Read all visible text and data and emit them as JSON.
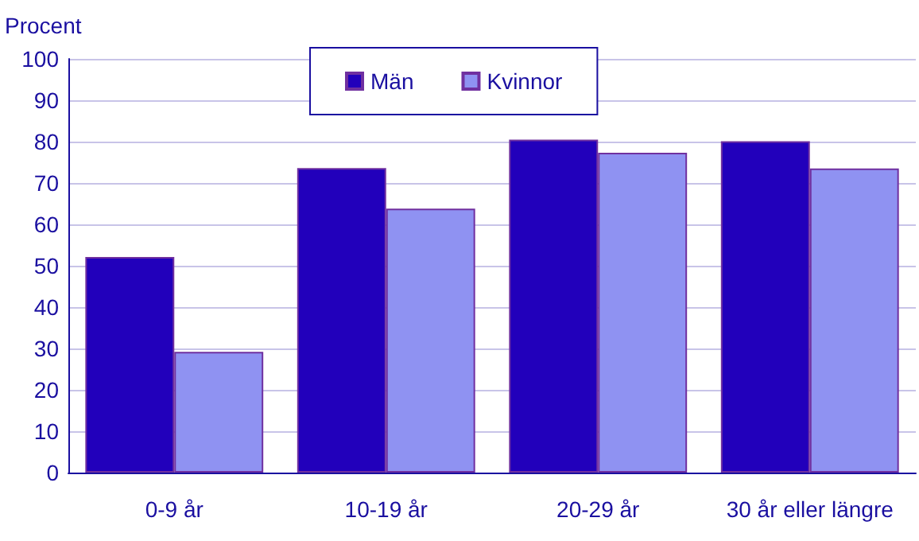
{
  "chart_data": {
    "type": "bar",
    "ylabel": "Procent",
    "categories": [
      "0-9 år",
      "10-19 år",
      "20-29 år",
      "30 år eller längre"
    ],
    "series": [
      {
        "name": "Män",
        "color": "#2200bb",
        "values": [
          52.1,
          73.6,
          80.5,
          80.1
        ]
      },
      {
        "name": "Kvinnor",
        "color": "#8f92f2",
        "values": [
          29.2,
          63.8,
          77.3,
          73.5
        ]
      }
    ],
    "ylim": [
      0,
      100
    ],
    "yticks": [
      0,
      10,
      20,
      30,
      40,
      50,
      60,
      70,
      80,
      90,
      100
    ],
    "grid": "y",
    "legend": "top"
  }
}
